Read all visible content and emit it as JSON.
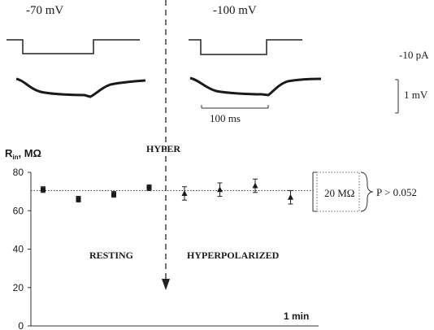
{
  "labels": {
    "voltage_left": "-70 mV",
    "voltage_right": "-100 mV",
    "current_scale": "-10 pA",
    "voltage_scale": "1 mV",
    "time_scale": "100 ms",
    "hyper": "HYPER",
    "resting": "RESTING",
    "hyperpolarized": "HYPERPOLARIZED",
    "time_bar": "1 min",
    "bracket_value": "20 MΩ",
    "p_value": "P > 0.052"
  },
  "chart_data": {
    "type": "scatter",
    "ylabel_main": "R",
    "ylabel_sub": "in",
    "ylabel_unit": ", MΩ",
    "ylim": [
      0,
      80
    ],
    "yticks": [
      0,
      20,
      40,
      60,
      80
    ],
    "reference_line": 70.5,
    "series": [
      {
        "marker": "square",
        "points": [
          [
            1,
            71,
            1.5
          ],
          [
            2,
            66,
            1.5
          ],
          [
            3,
            68.5,
            1.5
          ],
          [
            4,
            72,
            1.5
          ]
        ]
      },
      {
        "marker": "triangle",
        "points": [
          [
            5,
            69,
            3.5
          ],
          [
            6,
            71,
            3.5
          ],
          [
            7,
            73,
            3.5
          ],
          [
            8,
            67,
            3.5
          ]
        ]
      }
    ]
  }
}
